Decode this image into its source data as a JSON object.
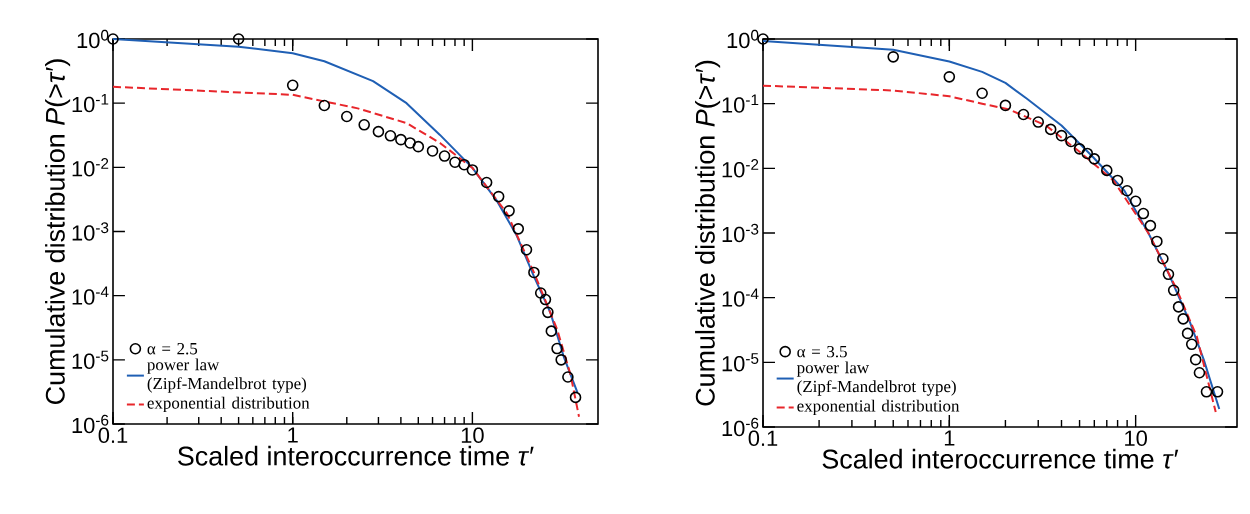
{
  "chart_data": [
    {
      "type": "line",
      "xlabel": "Scaled interoccurrence time *τ*′",
      "ylabel": "Cumulative distribution *P*(>*τ*′)",
      "log": "xy",
      "legend": "bottom left",
      "xlim": [
        0.1,
        50
      ],
      "ylim": [
        1e-06,
        1
      ],
      "xticks": [
        0.1,
        1,
        10
      ],
      "yticks": [
        {
          "value": 1,
          "label": "10$^{0}$"
        },
        {
          "value": 0.1,
          "label": "10$^{-1}$"
        },
        {
          "value": 0.01,
          "label": "10$^{-2}$"
        },
        {
          "value": 0.001,
          "label": "10$^{-3}$"
        },
        {
          "value": 0.0001,
          "label": "10$^{-4}$"
        },
        {
          "value": 1e-05,
          "label": "10$^{-5}$"
        },
        {
          "value": 1e-06,
          "label": "10$^{-6}$"
        }
      ],
      "series": [
        {
          "name": "α = 2.5",
          "type": "scatter",
          "marker": "circle",
          "color": "#000000",
          "x": [
            0.1,
            0.5,
            1,
            1.5,
            2,
            2.5,
            3,
            3.5,
            4,
            4.5,
            5,
            6,
            7,
            8,
            9,
            10,
            12,
            14,
            16,
            18,
            20,
            22,
            24,
            25.5,
            26.3,
            27.5,
            29.6,
            31.2,
            34,
            37.5
          ],
          "values": [
            1,
            1,
            0.19,
            0.092,
            0.062,
            0.046,
            0.036,
            0.031,
            0.027,
            0.024,
            0.021,
            0.018,
            0.015,
            0.012,
            0.011,
            0.0091,
            0.0058,
            0.0035,
            0.0021,
            0.0011,
            0.00052,
            0.00023,
            0.00011,
            8.7e-05,
            5.5e-05,
            2.8e-05,
            1.5e-05,
            1e-05,
            5.4e-06,
            2.6e-06
          ]
        },
        {
          "name": "power law (Zipf-Mandelbrot type)",
          "type": "line",
          "line_style": "solid",
          "color": "#1f5fb4",
          "x": [
            0.1,
            0.5,
            1,
            1.5,
            2.8,
            4.3,
            6.6,
            10,
            13.7,
            17.7,
            22,
            27.2,
            32.3,
            38.4
          ],
          "values": [
            1,
            0.76,
            0.6,
            0.45,
            0.22,
            0.1,
            0.032,
            0.0098,
            0.003,
            0.00085,
            0.0002,
            5.4e-05,
            1.1e-05,
            3.1e-06
          ]
        },
        {
          "name": "exponential distribution",
          "type": "line",
          "line_style": "dashed",
          "color": "#e8262b",
          "x": [
            0.1,
            1,
            2.3,
            4.3,
            6.6,
            10,
            15.6,
            22,
            29.6,
            35.2,
            39.2
          ],
          "values": [
            0.18,
            0.135,
            0.083,
            0.049,
            0.024,
            0.0098,
            0.0019,
            0.00023,
            3e-05,
            5.8e-06,
            1.3e-06
          ]
        }
      ]
    },
    {
      "type": "line",
      "xlabel": "Scaled interoccurrence time *τ*′",
      "ylabel": "Cumulative distribution *P*(>*τ*′)",
      "log": "xy",
      "legend": "bottom left",
      "xlim": [
        0.1,
        35
      ],
      "ylim": [
        1e-06,
        1
      ],
      "xticks": [
        0.1,
        1,
        10
      ],
      "yticks": [
        {
          "value": 1,
          "label": "10$^{0}$"
        },
        {
          "value": 0.1,
          "label": "10$^{-1}$"
        },
        {
          "value": 0.01,
          "label": "10$^{-2}$"
        },
        {
          "value": 0.001,
          "label": "10$^{-3}$"
        },
        {
          "value": 0.0001,
          "label": "10$^{-4}$"
        },
        {
          "value": 1e-05,
          "label": "10$^{-5}$"
        },
        {
          "value": 1e-06,
          "label": "10$^{-6}$"
        }
      ],
      "series": [
        {
          "name": "α = 3.5",
          "type": "scatter",
          "marker": "circle",
          "color": "#000000",
          "x": [
            0.1,
            0.5,
            1,
            1.5,
            2,
            2.5,
            3,
            3.5,
            4,
            4.5,
            5,
            5.5,
            6,
            7,
            8,
            9,
            10,
            11,
            12,
            13,
            14,
            15,
            16,
            17,
            18,
            19,
            20,
            21,
            22,
            24,
            27.5
          ],
          "values": [
            1,
            0.53,
            0.26,
            0.145,
            0.094,
            0.068,
            0.052,
            0.04,
            0.032,
            0.026,
            0.02,
            0.017,
            0.014,
            0.0093,
            0.0065,
            0.0045,
            0.0031,
            0.002,
            0.0013,
            0.00074,
            0.0004,
            0.00023,
            0.00013,
            7.2e-05,
            4.7e-05,
            2.8e-05,
            1.9e-05,
            1.1e-05,
            6.9e-06,
            3.5e-06,
            3.5e-06
          ]
        },
        {
          "name": "power law (Zipf-Mandelbrot type)",
          "type": "line",
          "line_style": "solid",
          "color": "#1f5fb4",
          "x": [
            0.1,
            0.5,
            1,
            1.5,
            2,
            2.6,
            4.0,
            5.9,
            8.7,
            11.7,
            15.1,
            19.6,
            23.2,
            28.1
          ],
          "values": [
            0.93,
            0.68,
            0.45,
            0.31,
            0.21,
            0.12,
            0.046,
            0.015,
            0.0045,
            0.001,
            0.00023,
            4.1e-05,
            1.1e-05,
            1.9e-06
          ]
        },
        {
          "name": "exponential distribution",
          "type": "line",
          "line_style": "dashed",
          "color": "#e8262b",
          "x": [
            0.1,
            0.5,
            1,
            1.5,
            2.1,
            3.3,
            5.0,
            7.6,
            11.7,
            16.5,
            21.3,
            26.9
          ],
          "values": [
            0.19,
            0.16,
            0.13,
            0.1,
            0.081,
            0.046,
            0.018,
            0.0065,
            0.001,
            0.00014,
            2.5e-05,
            1.7e-06
          ]
        }
      ]
    }
  ]
}
